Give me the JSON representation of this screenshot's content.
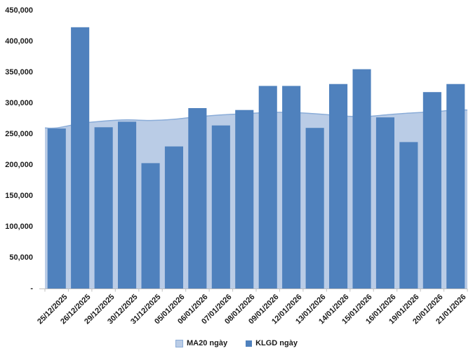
{
  "chart_data": {
    "type": "combo-area-bar",
    "title": "",
    "xlabel": "",
    "ylabel": "",
    "categories": [
      "25/12/2025",
      "26/12/2025",
      "29/12/2025",
      "30/12/2025",
      "31/12/2025",
      "05/01/2026",
      "06/01/2026",
      "07/01/2026",
      "08/01/2026",
      "09/01/2026",
      "12/01/2026",
      "13/01/2026",
      "14/01/2026",
      "15/01/2026",
      "16/01/2026",
      "19/01/2026",
      "20/01/2026",
      "21/01/2026"
    ],
    "series": [
      {
        "name": "MA20 ngày",
        "type": "area",
        "fill_color": "#BACCE6",
        "line_color": "#8AACD8",
        "values": [
          260000,
          267000,
          271000,
          273000,
          272000,
          274000,
          278000,
          281000,
          283000,
          285000,
          285000,
          283000,
          280000,
          278000,
          281000,
          284000,
          286000,
          289000
        ]
      },
      {
        "name": "KLGD ngày",
        "type": "bar",
        "color": "#4F81BD",
        "values": [
          259000,
          423000,
          261000,
          270000,
          203000,
          230000,
          292000,
          264000,
          289000,
          328000,
          328000,
          260000,
          331000,
          355000,
          277000,
          237000,
          318000,
          331000
        ]
      }
    ],
    "ylim": [
      0,
      450000
    ],
    "ytick_step": 50000,
    "ytick_labels": [
      "-",
      "50,000",
      "100,000",
      "150,000",
      "200,000",
      "250,000",
      "300,000",
      "350,000",
      "400,000",
      "450,000"
    ],
    "grid": false,
    "legend_position": "bottom",
    "axis_color": "#BFBFBF",
    "text_color": "#1A1A1A",
    "background_color": "#FFFFFF"
  }
}
